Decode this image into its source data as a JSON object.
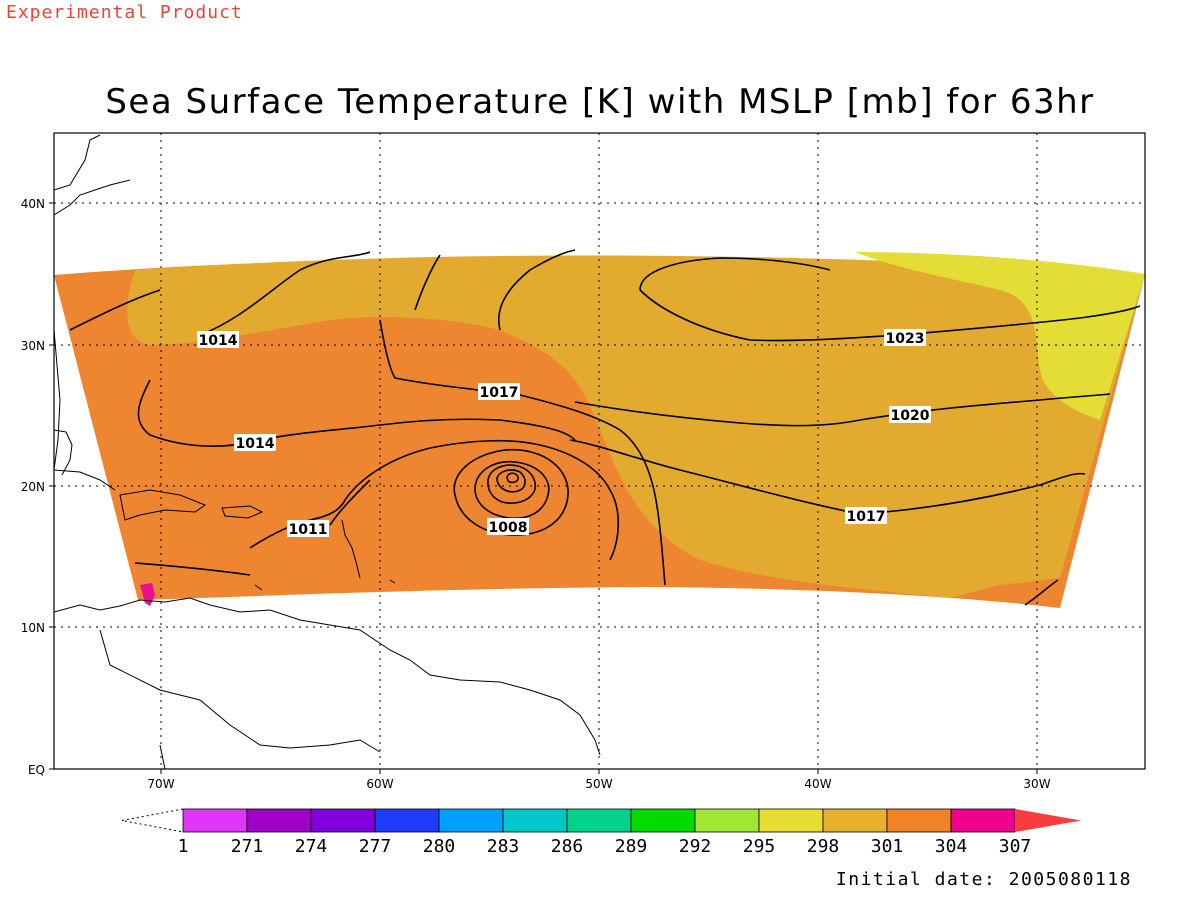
{
  "header": {
    "experimental_label": "Experimental Product",
    "title": "Sea Surface Temperature [K] with MSLP [mb] for 63hr"
  },
  "footer": {
    "initial_date": "Initial date: 2005080118"
  },
  "colors": {
    "experimental_label": "#e8443a",
    "sst_301": "#e2ab30",
    "sst_304": "#ee8530",
    "sst_298": "#e3dd35",
    "sst_307": "#eb0e8d",
    "land_outline": "#000000",
    "grid": "#000000"
  },
  "map": {
    "lat_labels": [
      "40N",
      "30N",
      "20N",
      "10N",
      "EQ"
    ],
    "lon_labels": [
      "70W",
      "60W",
      "50W",
      "40W",
      "30W"
    ],
    "grid_lines": "dotted",
    "isobar_labels": [
      {
        "label": "1014"
      },
      {
        "label": "1014"
      },
      {
        "label": "1011"
      },
      {
        "label": "1008"
      },
      {
        "label": "1017"
      },
      {
        "label": "1017"
      },
      {
        "label": "1020"
      },
      {
        "label": "1023"
      }
    ]
  },
  "colorbar": {
    "labels": [
      "1",
      "271",
      "274",
      "277",
      "280",
      "283",
      "286",
      "289",
      "292",
      "295",
      "298",
      "301",
      "304",
      "307"
    ],
    "colors": [
      "#dd36f5",
      "#a000c8",
      "#8200dc",
      "#1e3cff",
      "#00a0ff",
      "#00c8c8",
      "#00d28c",
      "#00dc00",
      "#a0e632",
      "#e6dc32",
      "#e6af2d",
      "#f08228",
      "#f0008c",
      "#fa3c3c"
    ]
  }
}
